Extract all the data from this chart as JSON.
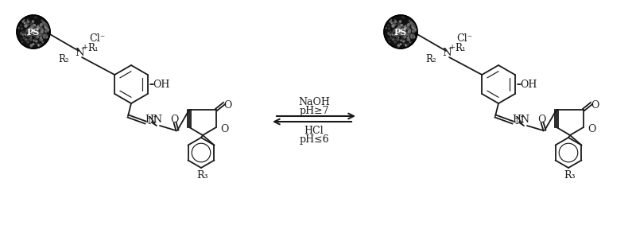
{
  "fig_width": 8.0,
  "fig_height": 2.98,
  "dpi": 100,
  "bg_color": "#ffffff",
  "line_color": "#1a1a1a",
  "line_width": 1.3,
  "cl_text": "Cl⁻",
  "oh_text": "OH",
  "r1_text": "R₁",
  "r2_text": "R₂",
  "r3_text": "R₃",
  "naoh_text": "NaOH",
  "ph7_text": "pH≥7",
  "hcl_text": "HCl",
  "ph6_text": "pH≤6"
}
